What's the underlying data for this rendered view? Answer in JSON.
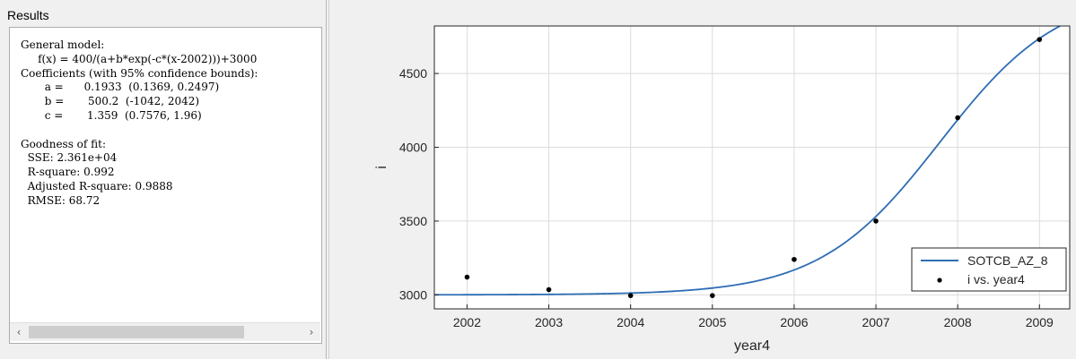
{
  "results": {
    "title": "Results",
    "lines": [
      "General model:",
      "     f(x) = 400/(a+b*exp(-c*(x-2002)))+3000",
      "Coefficients (with 95% confidence bounds):",
      "       a =      0.1933  (0.1369, 0.2497)",
      "       b =       500.2  (-1042, 2042)",
      "       c =       1.359  (0.7576, 1.96)",
      "",
      "Goodness of fit:",
      "  SSE: 2.361e+04",
      "  R-square: 0.992",
      "  Adjusted R-square: 0.9888",
      "  RMSE: 68.72"
    ],
    "scroll_left_icon": "‹",
    "scroll_right_icon": "›"
  },
  "chart_data": {
    "type": "scatter",
    "xlabel": "year4",
    "ylabel": "i",
    "xlim": [
      2001.6,
      2009.37
    ],
    "ylim": [
      2905,
      4822
    ],
    "xticks": [
      2002,
      2003,
      2004,
      2005,
      2006,
      2007,
      2008,
      2009
    ],
    "yticks": [
      3000,
      3500,
      4000,
      4500
    ],
    "grid": true,
    "legend_position": "bottom-right",
    "points": {
      "name": "i vs. year4",
      "x": [
        2002,
        2003,
        2004,
        2005,
        2006,
        2007,
        2008,
        2009
      ],
      "y": [
        3120,
        3035,
        2995,
        2995,
        3240,
        3500,
        4200,
        4730
      ]
    },
    "fit": {
      "name": "SOTCB_AZ_8",
      "a": 0.1933,
      "b": 500.2,
      "c": 1.359,
      "base": 3000,
      "numerator": 400,
      "x0": 2002
    },
    "colors": {
      "fit_line": "#2e6db4",
      "points": "#000000",
      "grid": "#dcdcdc",
      "axes_bg": "#ffffff"
    }
  }
}
